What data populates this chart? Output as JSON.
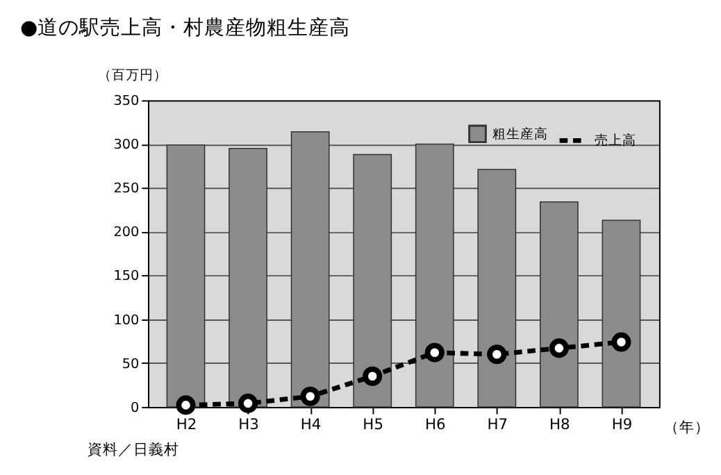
{
  "chart_data": {
    "type": "bar",
    "title": "●道の駅売上高・村農産物粗生産高",
    "ylabel": "（百万円）",
    "xlabel": "（年）",
    "annotations": [
      "資料／日義村"
    ],
    "categories": [
      "H2",
      "H3",
      "H4",
      "H5",
      "H6",
      "H7",
      "H8",
      "H9"
    ],
    "series": [
      {
        "name": "粗生産高",
        "color": "#8c8c8c",
        "values": [
          299,
          295,
          314,
          288,
          300,
          271,
          234,
          213
        ]
      },
      {
        "name": "売上高",
        "type": "line",
        "color": "#000000",
        "values": [
          2,
          4,
          12,
          35,
          62,
          60,
          67,
          74
        ]
      }
    ],
    "ylim": [
      0,
      350
    ],
    "yticks": [
      0,
      50,
      100,
      150,
      200,
      250,
      300,
      350
    ],
    "grid": "y",
    "legend": "top right",
    "marker": "circle",
    "line_style": "dashed"
  }
}
